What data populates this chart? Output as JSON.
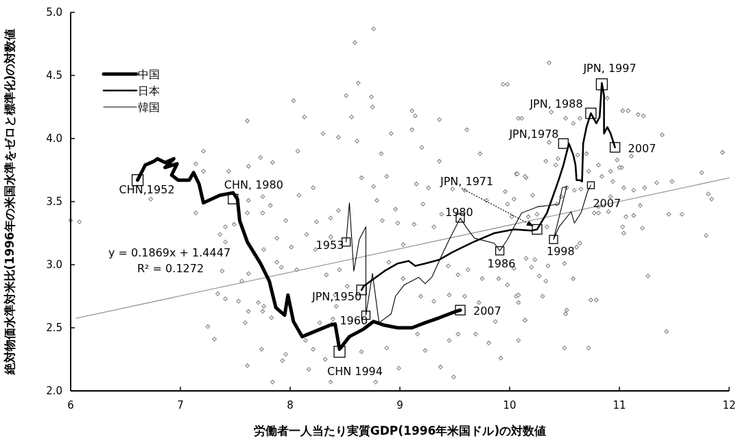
{
  "chart_data": {
    "type": "line",
    "xlabel": "労働者一人当たり実質GDP(1996年米国ドル)の対数値",
    "ylabel": "絶対物価水準対米比(1996年の米国水準をゼロと標準化)の対数値",
    "xlim": [
      6,
      12
    ],
    "xticks": [
      6,
      7,
      8,
      9,
      10,
      11,
      12
    ],
    "ylim": [
      2,
      5
    ],
    "yticks": [
      {
        "value": 2,
        "label": "2.0"
      },
      {
        "value": 2.5,
        "label": "2.5"
      },
      {
        "value": 3,
        "label": "3.0"
      },
      {
        "value": 3.5,
        "label": "3.5"
      },
      {
        "value": 4,
        "label": "4.0"
      },
      {
        "value": 4.5,
        "label": "4.5"
      },
      {
        "value": 5,
        "label": "5.0"
      }
    ],
    "legend": "top left",
    "series": [
      {
        "type": "scatter",
        "marker": "diamond",
        "color": "#8c8c8c",
        "x": [
          6.0,
          6.08,
          7.21,
          7.14,
          7.21,
          6.73,
          7.14,
          7.44,
          7.62,
          7.73,
          7.84,
          8.07,
          8.3,
          8.44,
          8.21,
          8.08,
          7.75,
          7.62,
          7.82,
          7.75,
          7.61,
          7.49,
          7.41,
          7.36,
          7.41,
          7.96,
          8.15,
          7.88,
          8.01,
          7.76,
          8.23,
          7.88,
          7.92,
          8.06,
          7.38,
          7.62,
          7.56,
          7.34,
          7.41,
          7.53,
          7.71,
          7.76,
          7.62,
          7.75,
          7.59,
          7.83,
          7.25,
          7.31,
          7.74,
          7.61,
          7.93,
          7.96,
          8.17,
          7.84,
          8.37,
          8.32,
          8.14,
          8.21,
          8.39,
          8.27,
          8.44,
          8.37,
          8.24,
          8.37,
          8.33,
          8.41,
          8.65,
          8.76,
          8.88,
          9.15,
          9.26,
          9.48,
          9.59,
          10.06,
          10.15,
          8.79,
          8.96,
          9.21,
          9.38,
          9.79,
          9.98,
          8.84,
          8.98,
          9.13,
          9.31,
          9.03,
          8.9,
          9.03,
          9.19,
          9.44,
          9.53,
          9.62,
          9.75,
          9.9,
          9.59,
          9.31,
          9.45,
          9.72,
          10.06,
          9.87,
          10.14,
          9.69,
          9.81,
          9.92,
          9.53,
          9.45,
          9.23,
          9.37,
          9.49,
          8.99,
          8.78,
          8.65,
          8.88,
          8.42,
          8.38,
          9.16,
          10.15,
          10.2,
          8.45,
          8.52,
          9.94,
          10.08,
          11.03,
          11.17,
          11.39,
          11.94,
          11.75,
          11.81,
          11.84,
          11.48,
          11.34,
          11.23,
          11.13,
          11.04,
          11.19,
          11.06,
          11.13,
          11.03,
          11.04,
          11.21,
          11.45,
          11.57,
          11.79,
          11.26,
          11.43,
          11.02,
          10.98,
          11.11,
          10.9,
          10.81,
          10.74,
          10.79,
          10.52,
          10.51,
          10.72,
          10.5,
          10.58,
          10.33,
          10.27,
          10.3,
          10.08,
          10.08,
          10.14,
          10.08,
          9.98,
          10.04,
          10.23,
          10.35,
          10.5,
          10.64,
          10.61,
          10.42,
          10.33,
          10.36,
          10.44,
          10.38,
          10.51,
          10.58,
          10.64,
          10.89,
          10.81,
          10.92,
          10.94,
          11.0,
          10.84,
          10.72,
          10.7,
          10.62,
          10.52,
          10.59,
          10.65,
          10.47,
          10.43,
          10.34,
          10.21,
          10.25,
          10.14,
          10.07,
          9.96,
          10.04,
          10.02,
          10.17,
          10.77,
          10.81,
          10.92,
          7.61,
          8.03,
          8.13,
          8.51,
          8.56,
          8.59,
          8.62,
          8.74,
          8.75,
          9.11,
          9.14,
          9.98,
          10.11,
          10.36,
          11.08,
          11.22,
          8.76,
          9.11,
          9.2,
          9.36,
          8.92,
          8.83,
          8.61,
          9.61,
          9.73,
          9.36
        ],
        "values": [
          3.35,
          3.34,
          3.9,
          3.8,
          3.74,
          3.52,
          3.41,
          3.74,
          3.78,
          3.85,
          3.81,
          3.9,
          4.04,
          4.01,
          3.61,
          3.55,
          3.54,
          3.51,
          3.47,
          3.41,
          3.41,
          3.32,
          3.3,
          3.24,
          3.18,
          3.35,
          3.24,
          3.21,
          3.14,
          3.12,
          3.12,
          3.02,
          2.98,
          2.96,
          2.95,
          2.93,
          2.87,
          2.77,
          2.73,
          2.71,
          2.7,
          2.67,
          2.63,
          2.63,
          2.54,
          2.58,
          2.51,
          2.41,
          2.33,
          2.2,
          2.24,
          2.29,
          2.17,
          2.07,
          2.07,
          2.25,
          2.4,
          2.33,
          2.57,
          2.54,
          3.43,
          3.37,
          3.34,
          3.22,
          2.92,
          2.76,
          3.69,
          3.62,
          3.7,
          3.64,
          3.61,
          3.6,
          3.59,
          3.72,
          3.69,
          3.51,
          3.44,
          3.48,
          3.4,
          3.51,
          3.48,
          3.35,
          3.33,
          3.32,
          3.3,
          3.16,
          3.02,
          2.89,
          2.75,
          2.99,
          2.92,
          2.96,
          2.89,
          2.89,
          2.75,
          2.71,
          2.76,
          2.7,
          2.75,
          2.55,
          2.56,
          2.45,
          2.38,
          2.26,
          2.45,
          2.4,
          2.32,
          2.19,
          2.11,
          2.18,
          2.07,
          2.31,
          2.34,
          2.67,
          2.53,
          2.45,
          3.05,
          2.98,
          2.96,
          2.83,
          4.43,
          4.16,
          4.22,
          4.19,
          4.03,
          3.89,
          3.73,
          3.56,
          3.52,
          3.66,
          3.65,
          3.61,
          3.59,
          3.61,
          3.47,
          3.38,
          3.39,
          3.3,
          3.25,
          3.29,
          3.4,
          3.4,
          3.23,
          2.91,
          2.47,
          3.77,
          3.83,
          3.86,
          3.42,
          3.41,
          2.72,
          2.72,
          2.64,
          2.61,
          2.34,
          2.34,
          2.89,
          2.87,
          2.91,
          2.75,
          2.76,
          2.7,
          2.56,
          2.4,
          2.84,
          2.97,
          3.04,
          2.99,
          3.01,
          3.17,
          3.14,
          3.79,
          3.82,
          3.97,
          3.84,
          4.21,
          4.16,
          4.12,
          4.16,
          4.32,
          3.79,
          3.74,
          3.66,
          3.77,
          3.7,
          3.74,
          3.88,
          3.87,
          3.61,
          3.59,
          3.6,
          3.54,
          3.48,
          3.3,
          3.55,
          3.4,
          3.7,
          3.72,
          3.58,
          3.52,
          3.38,
          3.38,
          3.41,
          3.46,
          3.54,
          4.14,
          4.3,
          4.17,
          4.34,
          4.17,
          4.76,
          4.44,
          4.33,
          4.25,
          4.22,
          4.18,
          4.43,
          4.16,
          4.6,
          4.22,
          4.18,
          4.87,
          4.07,
          3.93,
          3.82,
          4.04,
          3.88,
          3.98,
          4.07,
          3.88,
          4.15
        ]
      },
      {
        "type": "line",
        "color": "#999999",
        "x": [
          6.05,
          12
        ],
        "values": [
          2.575,
          3.688
        ]
      },
      {
        "name": "中国",
        "color": "#000000",
        "x": [
          6.61,
          6.68,
          6.76,
          6.79,
          6.86,
          6.94,
          6.86,
          6.97,
          6.92,
          6.98,
          7.08,
          7.12,
          7.17,
          7.21,
          7.36,
          7.48,
          7.52,
          7.54,
          7.61,
          7.73,
          7.81,
          7.87,
          7.95,
          7.98,
          8.03,
          8.11,
          8.36,
          8.41,
          8.45,
          8.54,
          8.67,
          8.76,
          8.86,
          8.98,
          9.11,
          9.23,
          9.36,
          9.51,
          9.55
        ],
        "values": [
          3.67,
          3.79,
          3.82,
          3.84,
          3.81,
          3.84,
          3.77,
          3.8,
          3.71,
          3.67,
          3.67,
          3.73,
          3.64,
          3.49,
          3.55,
          3.57,
          3.52,
          3.35,
          3.18,
          3.01,
          2.87,
          2.66,
          2.6,
          2.76,
          2.55,
          2.43,
          2.52,
          2.53,
          2.33,
          2.43,
          2.49,
          2.55,
          2.52,
          2.5,
          2.5,
          2.54,
          2.58,
          2.63,
          2.64
        ]
      },
      {
        "name": "日本",
        "color": "#000000",
        "x": [
          8.65,
          8.67,
          8.86,
          8.98,
          9.08,
          9.14,
          9.23,
          9.36,
          9.48,
          9.67,
          9.86,
          10.04,
          10.2,
          10.25,
          10.34,
          10.41,
          10.45,
          10.49,
          10.54,
          10.58,
          10.6,
          10.61,
          10.64,
          10.66,
          10.67,
          10.7,
          10.74,
          10.79,
          10.82,
          10.84,
          10.86,
          10.86,
          10.89,
          10.92,
          10.96
        ],
        "values": [
          2.8,
          2.83,
          2.95,
          3.01,
          3.03,
          2.99,
          3.01,
          3.04,
          3.1,
          3.18,
          3.25,
          3.28,
          3.27,
          3.28,
          3.41,
          3.58,
          3.68,
          3.79,
          3.96,
          3.87,
          3.79,
          3.67,
          3.67,
          3.66,
          3.96,
          4.09,
          4.2,
          4.12,
          4.17,
          4.44,
          4.34,
          4.04,
          4.09,
          4.04,
          3.93
        ]
      },
      {
        "name": "韓国",
        "color": "#000000",
        "x": [
          8.51,
          8.54,
          8.58,
          8.63,
          8.69,
          8.69,
          8.75,
          8.81,
          8.92,
          8.96,
          9.04,
          9.17,
          9.23,
          9.29,
          9.39,
          9.45,
          9.55,
          9.61,
          9.68,
          9.86,
          9.91,
          9.98,
          10.04,
          10.11,
          10.26,
          10.36,
          10.45,
          10.48,
          10.52,
          10.4,
          10.45,
          10.56,
          10.59,
          10.65,
          10.71,
          10.74
        ],
        "values": [
          3.18,
          3.49,
          2.95,
          3.2,
          3.3,
          2.6,
          2.93,
          2.54,
          2.61,
          2.75,
          2.84,
          2.9,
          2.85,
          2.9,
          3.09,
          3.2,
          3.37,
          3.29,
          3.21,
          3.17,
          3.11,
          3.2,
          3.3,
          3.41,
          3.46,
          3.47,
          3.48,
          3.61,
          3.62,
          3.2,
          3.3,
          3.42,
          3.33,
          3.41,
          3.58,
          3.63
        ]
      }
    ],
    "annotations": [
      {
        "text": "CHN,1952",
        "x": 6.61,
        "y": 3.67
      },
      {
        "text": "CHN, 1980",
        "x": 7.48,
        "y": 3.52
      },
      {
        "text": "CHN 1994",
        "x": 8.45,
        "y": 2.31
      },
      {
        "text": "2007",
        "x": 9.55,
        "y": 2.64
      },
      {
        "text": "JPN,1950",
        "x": 8.65,
        "y": 2.8
      },
      {
        "text": "JPN, 1971",
        "x": 10.25,
        "y": 3.28
      },
      {
        "text": "JPN,1978",
        "x": 10.49,
        "y": 3.96
      },
      {
        "text": "JPN, 1988",
        "x": 10.74,
        "y": 4.2
      },
      {
        "text": "JPN, 1997",
        "x": 10.84,
        "y": 4.43
      },
      {
        "text": "2007",
        "x": 10.96,
        "y": 3.93
      },
      {
        "text": "1953",
        "x": 8.51,
        "y": 3.18
      },
      {
        "text": "1960",
        "x": 8.69,
        "y": 2.6
      },
      {
        "text": "1980",
        "x": 9.55,
        "y": 3.37
      },
      {
        "text": "1986",
        "x": 9.91,
        "y": 3.11
      },
      {
        "text": "1998",
        "x": 10.4,
        "y": 3.2
      },
      {
        "text": "2007",
        "x": 10.74,
        "y": 3.63
      },
      "y = 0.1869x + 1.4447",
      "R² = 0.1272"
    ]
  }
}
